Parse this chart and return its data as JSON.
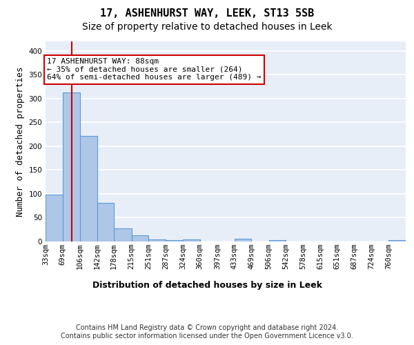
{
  "title": "17, ASHENHURST WAY, LEEK, ST13 5SB",
  "subtitle": "Size of property relative to detached houses in Leek",
  "xlabel": "Distribution of detached houses by size in Leek",
  "ylabel": "Number of detached properties",
  "bin_labels": [
    "33sqm",
    "69sqm",
    "106sqm",
    "142sqm",
    "178sqm",
    "215sqm",
    "251sqm",
    "287sqm",
    "324sqm",
    "360sqm",
    "397sqm",
    "433sqm",
    "469sqm",
    "506sqm",
    "542sqm",
    "578sqm",
    "615sqm",
    "651sqm",
    "687sqm",
    "724sqm",
    "760sqm"
  ],
  "bin_edges": [
    33,
    69,
    106,
    142,
    178,
    215,
    251,
    287,
    324,
    360,
    397,
    433,
    469,
    506,
    542,
    578,
    615,
    651,
    687,
    724,
    760
  ],
  "values": [
    98,
    313,
    222,
    81,
    27,
    13,
    5,
    3,
    4,
    0,
    0,
    6,
    0,
    3,
    0,
    0,
    0,
    0,
    0,
    0,
    3
  ],
  "bar_color": "#aec6e8",
  "bar_edge_color": "#5b9bd5",
  "bar_edge_width": 0.8,
  "vline_x": 88,
  "vline_color": "#cc0000",
  "annotation_text": "17 ASHENHURST WAY: 88sqm\n← 35% of detached houses are smaller (264)\n64% of semi-detached houses are larger (489) →",
  "annotation_box_color": "white",
  "annotation_box_edge_color": "#cc0000",
  "ylim": [
    0,
    420
  ],
  "yticks": [
    0,
    50,
    100,
    150,
    200,
    250,
    300,
    350,
    400
  ],
  "background_color": "#e8eef8",
  "grid_color": "white",
  "footer_text": "Contains HM Land Registry data © Crown copyright and database right 2024.\nContains public sector information licensed under the Open Government Licence v3.0.",
  "title_fontsize": 11,
  "subtitle_fontsize": 10,
  "ylabel_fontsize": 9,
  "xlabel_fontsize": 9,
  "tick_fontsize": 7.5,
  "annotation_fontsize": 8,
  "footer_fontsize": 7
}
